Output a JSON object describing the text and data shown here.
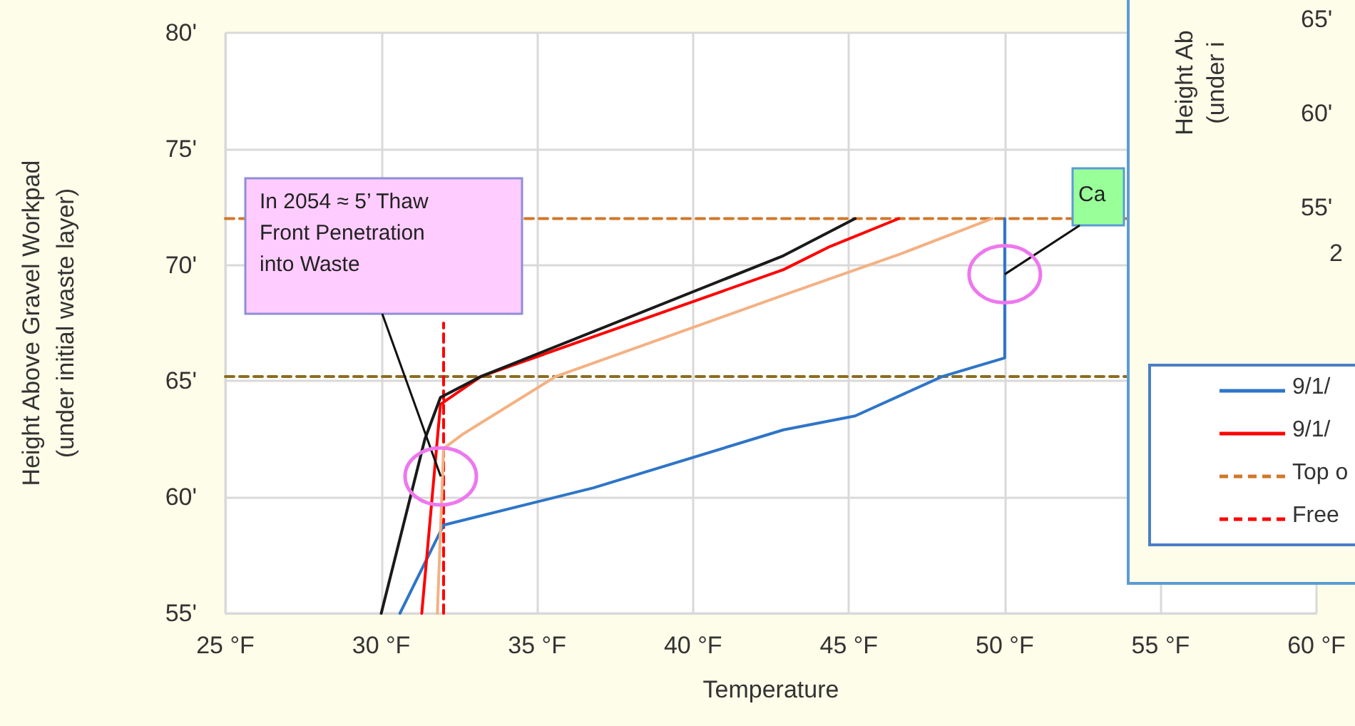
{
  "chart_data": [
    {
      "type": "line",
      "xlabel": "Temperature",
      "ylabel": "Height Above Gravel Workpad\n(under initial waste layer)",
      "xlim": [
        25,
        60
      ],
      "xticks": [
        {
          "value": 25,
          "label": "25 °F"
        },
        {
          "value": 30,
          "label": "30 °F"
        },
        {
          "value": 35,
          "label": "35 °F"
        },
        {
          "value": 40,
          "label": "40 °F"
        },
        {
          "value": 45,
          "label": "45 °F"
        },
        {
          "value": 50,
          "label": "50 °F"
        },
        {
          "value": 55,
          "label": "55 °F"
        },
        {
          "value": 60,
          "label": "60 °F"
        }
      ],
      "ylim": [
        55,
        80
      ],
      "yticks": [
        {
          "value": 55,
          "label": "55'"
        },
        {
          "value": 60,
          "label": "60'"
        },
        {
          "value": 65,
          "label": "65'"
        },
        {
          "value": 70,
          "label": "70'"
        },
        {
          "value": 75,
          "label": "75'"
        },
        {
          "value": 80,
          "label": "80'"
        }
      ],
      "grid": true,
      "legend": "right",
      "marker": "none",
      "series": [
        {
          "name": "9/1/",
          "color": "#2e75c8",
          "x": [
            30.6,
            32.0,
            36.8,
            42.9,
            45.2,
            48.0,
            50.0,
            50.0
          ],
          "values": [
            55,
            58.8,
            60.4,
            62.9,
            63.5,
            65.2,
            66.0,
            72
          ]
        },
        {
          "name": "9/1/",
          "color": "#ff0000",
          "x": [
            31.3,
            31.9,
            33.2,
            42.9,
            44.4,
            46.6
          ],
          "values": [
            55,
            64.0,
            65.2,
            69.8,
            70.8,
            72
          ]
        },
        {
          "color": "#1a1a1a",
          "x": [
            30.0,
            31.4,
            31.9,
            33.2,
            42.9,
            45.2
          ],
          "values": [
            55,
            62.5,
            64.3,
            65.2,
            70.4,
            72
          ]
        },
        {
          "color": "#f4b183",
          "x": [
            31.8,
            32.0,
            32.6,
            35.6,
            42.9,
            46.7,
            49.6
          ],
          "values": [
            55,
            62.1,
            62.7,
            65.2,
            68.7,
            70.5,
            72
          ]
        },
        {
          "name": "Top o",
          "color": "#d0782a",
          "line_style": "dashed",
          "x": [
            25,
            53.9
          ],
          "values": [
            72,
            72
          ]
        },
        {
          "color": "#8c6d1f",
          "line_style": "dashed",
          "x": [
            25,
            53.9
          ],
          "values": [
            65.2,
            65.2
          ]
        },
        {
          "name": "Free",
          "color": "#ff0000",
          "line_style": "dashed",
          "x": [
            32,
            32
          ],
          "values": [
            55,
            67.5
          ]
        }
      ],
      "annotations": [
        "In 2054 ≈ 5’ Thaw\nFront Penetration\ninto Waste",
        {
          "text": "Ca",
          "x": 50,
          "y": 69.6
        }
      ]
    },
    {
      "type": "other",
      "ylabel": "Height Ab\n(under i",
      "annotations": [
        "65'",
        "60'",
        "55'",
        "2"
      ]
    }
  ]
}
